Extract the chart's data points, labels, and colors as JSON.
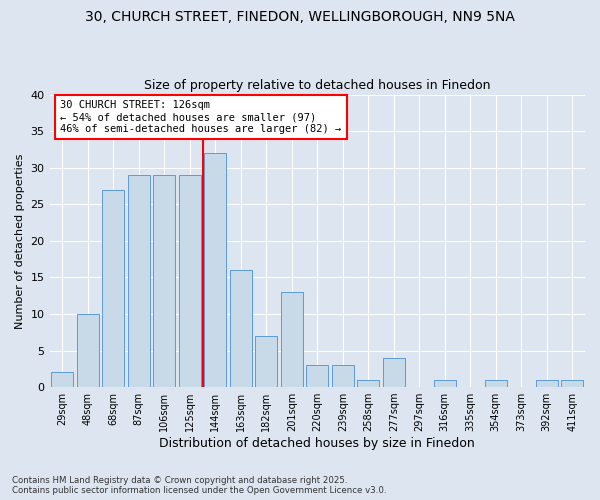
{
  "title_line1": "30, CHURCH STREET, FINEDON, WELLINGBOROUGH, NN9 5NA",
  "title_line2": "Size of property relative to detached houses in Finedon",
  "xlabel": "Distribution of detached houses by size in Finedon",
  "ylabel": "Number of detached properties",
  "footnote": "Contains HM Land Registry data © Crown copyright and database right 2025.\nContains public sector information licensed under the Open Government Licence v3.0.",
  "bins": [
    "29sqm",
    "48sqm",
    "68sqm",
    "87sqm",
    "106sqm",
    "125sqm",
    "144sqm",
    "163sqm",
    "182sqm",
    "201sqm",
    "220sqm",
    "239sqm",
    "258sqm",
    "277sqm",
    "297sqm",
    "316sqm",
    "335sqm",
    "354sqm",
    "373sqm",
    "392sqm",
    "411sqm"
  ],
  "values": [
    2,
    10,
    27,
    29,
    29,
    29,
    32,
    16,
    7,
    13,
    3,
    3,
    1,
    4,
    0,
    1,
    0,
    1,
    0,
    1,
    1
  ],
  "bar_color": "#c8d9e8",
  "bar_edge_color": "#5b9bd5",
  "red_line_x": 5.5,
  "annotation_line1": "30 CHURCH STREET: 126sqm",
  "annotation_line2": "← 54% of detached houses are smaller (97)",
  "annotation_line3": "46% of semi-detached houses are larger (82) →",
  "ylim": [
    0,
    40
  ],
  "yticks": [
    0,
    5,
    10,
    15,
    20,
    25,
    30,
    35,
    40
  ],
  "background_color": "#dde5f0",
  "plot_background": "#dde5f0",
  "grid_color": "#ffffff"
}
